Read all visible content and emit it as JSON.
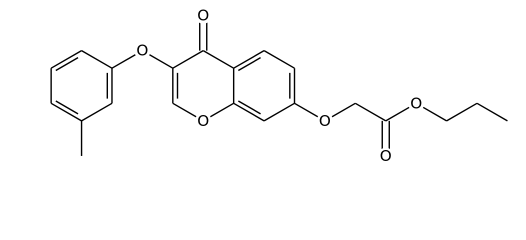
{
  "molecule": {
    "atoms": [
      {
        "label": "O"
      },
      {
        "label": "O"
      },
      {
        "label": "O"
      },
      {
        "label": "O"
      },
      {
        "label": "O"
      },
      {
        "label": "O"
      }
    ]
  }
}
